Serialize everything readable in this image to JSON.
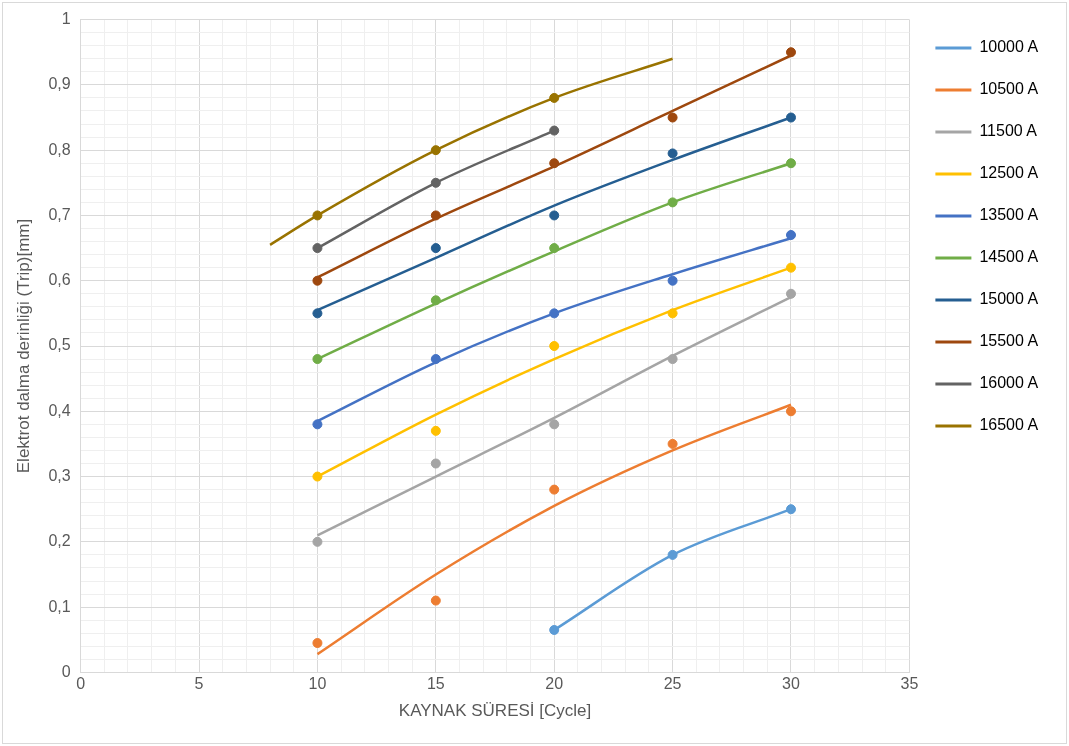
{
  "chart_data": {
    "type": "scatter",
    "xlabel": "KAYNAK SÜRESİ [Cycle]",
    "ylabel": "Elektrot dalma derinliği (Trip)[mm]",
    "xlim": [
      0,
      35
    ],
    "ylim": [
      0,
      1
    ],
    "xticks": [
      0,
      {
        "value": 1,
        "label": null
      },
      {
        "value": 2,
        "label": null
      },
      {
        "value": 3,
        "label": null
      },
      {
        "value": 4,
        "label": null
      },
      5,
      {
        "value": 6,
        "label": null
      },
      {
        "value": 7,
        "label": null
      },
      {
        "value": 8,
        "label": null
      },
      {
        "value": 9,
        "label": null
      },
      10,
      {
        "value": 11,
        "label": null
      },
      {
        "value": 12,
        "label": null
      },
      {
        "value": 13,
        "label": null
      },
      {
        "value": 14,
        "label": null
      },
      15,
      {
        "value": 16,
        "label": null
      },
      {
        "value": 17,
        "label": null
      },
      {
        "value": 18,
        "label": null
      },
      {
        "value": 19,
        "label": null
      },
      20,
      {
        "value": 21,
        "label": null
      },
      {
        "value": 22,
        "label": null
      },
      {
        "value": 23,
        "label": null
      },
      {
        "value": 24,
        "label": null
      },
      25,
      {
        "value": 26,
        "label": null
      },
      {
        "value": 27,
        "label": null
      },
      {
        "value": 28,
        "label": null
      },
      {
        "value": 29,
        "label": null
      },
      30,
      {
        "value": 31,
        "label": null
      },
      {
        "value": 32,
        "label": null
      },
      {
        "value": 33,
        "label": null
      },
      {
        "value": 34,
        "label": null
      },
      35
    ],
    "yticks": [
      0,
      {
        "value": 0.02,
        "label": null
      },
      {
        "value": 0.04,
        "label": null
      },
      {
        "value": 0.06,
        "label": null
      },
      {
        "value": 0.08,
        "label": null
      },
      {
        "value": 0.1,
        "label": "0,1"
      },
      {
        "value": 0.12,
        "label": null
      },
      {
        "value": 0.14,
        "label": null
      },
      {
        "value": 0.16,
        "label": null
      },
      {
        "value": 0.18,
        "label": null
      },
      {
        "value": 0.2,
        "label": "0,2"
      },
      {
        "value": 0.22,
        "label": null
      },
      {
        "value": 0.24,
        "label": null
      },
      {
        "value": 0.26,
        "label": null
      },
      {
        "value": 0.28,
        "label": null
      },
      {
        "value": 0.3,
        "label": "0,3"
      },
      {
        "value": 0.32,
        "label": null
      },
      {
        "value": 0.34,
        "label": null
      },
      {
        "value": 0.36,
        "label": null
      },
      {
        "value": 0.38,
        "label": null
      },
      {
        "value": 0.4,
        "label": "0,4"
      },
      {
        "value": 0.42,
        "label": null
      },
      {
        "value": 0.44,
        "label": null
      },
      {
        "value": 0.46,
        "label": null
      },
      {
        "value": 0.48,
        "label": null
      },
      {
        "value": 0.5,
        "label": "0,5"
      },
      {
        "value": 0.52,
        "label": null
      },
      {
        "value": 0.54,
        "label": null
      },
      {
        "value": 0.56,
        "label": null
      },
      {
        "value": 0.58,
        "label": null
      },
      {
        "value": 0.6,
        "label": "0,6"
      },
      {
        "value": 0.62,
        "label": null
      },
      {
        "value": 0.64,
        "label": null
      },
      {
        "value": 0.66,
        "label": null
      },
      {
        "value": 0.68,
        "label": null
      },
      {
        "value": 0.7,
        "label": "0,7"
      },
      {
        "value": 0.72,
        "label": null
      },
      {
        "value": 0.74,
        "label": null
      },
      {
        "value": 0.76,
        "label": null
      },
      {
        "value": 0.78,
        "label": null
      },
      {
        "value": 0.8,
        "label": "0,8"
      },
      {
        "value": 0.82,
        "label": null
      },
      {
        "value": 0.84,
        "label": null
      },
      {
        "value": 0.86,
        "label": null
      },
      {
        "value": 0.88,
        "label": null
      },
      {
        "value": 0.9,
        "label": "0,9"
      },
      {
        "value": 0.92,
        "label": null
      },
      {
        "value": 0.94,
        "label": null
      },
      {
        "value": 0.96,
        "label": null
      },
      {
        "value": 0.98,
        "label": null
      },
      1
    ],
    "grid": true,
    "legend": "right",
    "marker": "circle",
    "series": [
      {
        "name": "10000 A",
        "color": "#5b9bd5",
        "x": [
          20,
          25,
          30
        ],
        "values": [
          0.065,
          0.18,
          0.25
        ]
      },
      {
        "name": "10500 A",
        "color": "#ed7d31",
        "x": [
          10,
          15,
          20,
          25,
          30
        ],
        "values": [
          0.045,
          0.11,
          0.28,
          0.35,
          0.4
        ]
      },
      {
        "name": "11500 A",
        "color": "#a5a5a5",
        "x": [
          10,
          15,
          20,
          25,
          30
        ],
        "values": [
          0.2,
          0.32,
          0.38,
          0.48,
          0.58
        ]
      },
      {
        "name": "12500 A",
        "color": "#ffc000",
        "x": [
          10,
          15,
          20,
          25,
          30
        ],
        "values": [
          0.3,
          0.37,
          0.5,
          0.55,
          0.62
        ]
      },
      {
        "name": "13500 A",
        "color": "#4472c4",
        "x": [
          10,
          15,
          20,
          25,
          30
        ],
        "values": [
          0.38,
          0.48,
          0.55,
          0.6,
          0.67
        ]
      },
      {
        "name": "14500 A",
        "color": "#70ad47",
        "x": [
          10,
          15,
          20,
          25,
          30
        ],
        "values": [
          0.48,
          0.57,
          0.65,
          0.72,
          0.78
        ]
      },
      {
        "name": "15000 A",
        "color": "#255e91",
        "x": [
          10,
          15,
          20,
          25,
          30
        ],
        "values": [
          0.55,
          0.65,
          0.7,
          0.795,
          0.85
        ]
      },
      {
        "name": "15500 A",
        "color": "#9e480e",
        "x": [
          10,
          15,
          20,
          25,
          30
        ],
        "values": [
          0.6,
          0.7,
          0.78,
          0.85,
          0.95
        ]
      },
      {
        "name": "16000 A",
        "color": "#636363",
        "x": [
          10,
          15,
          20
        ],
        "values": [
          0.65,
          0.75,
          0.83
        ]
      },
      {
        "name": "16500 A",
        "color": "#997300",
        "x": [
          10,
          15,
          20
        ],
        "values": [
          0.7,
          0.8,
          0.88
        ]
      },
      {
        "type": "line",
        "marker": "none",
        "color": "#5b9bd5",
        "x": [
          20,
          25,
          30
        ],
        "values": [
          0.065,
          0.18,
          0.25
        ]
      },
      {
        "type": "line",
        "marker": "none",
        "color": "#ed7d31",
        "x": [
          10,
          15,
          20,
          25,
          30
        ],
        "values": [
          0.028,
          0.15,
          0.255,
          0.34,
          0.41
        ]
      },
      {
        "type": "line",
        "marker": "none",
        "color": "#a5a5a5",
        "x": [
          10,
          15,
          20,
          25,
          30
        ],
        "values": [
          0.21,
          0.3,
          0.39,
          0.485,
          0.575
        ]
      },
      {
        "type": "line",
        "marker": "none",
        "color": "#ffc000",
        "x": [
          10,
          15,
          20,
          25,
          30
        ],
        "values": [
          0.3,
          0.395,
          0.48,
          0.555,
          0.62
        ]
      },
      {
        "type": "line",
        "marker": "none",
        "color": "#4472c4",
        "x": [
          10,
          15,
          20,
          25,
          30
        ],
        "values": [
          0.385,
          0.475,
          0.55,
          0.61,
          0.665
        ]
      },
      {
        "type": "line",
        "marker": "none",
        "color": "#70ad47",
        "x": [
          10,
          15,
          20,
          25,
          30
        ],
        "values": [
          0.48,
          0.565,
          0.645,
          0.72,
          0.78
        ]
      },
      {
        "type": "line",
        "marker": "none",
        "color": "#255e91",
        "x": [
          10,
          15,
          20,
          25,
          30
        ],
        "values": [
          0.555,
          0.635,
          0.715,
          0.785,
          0.85
        ]
      },
      {
        "type": "line",
        "marker": "none",
        "color": "#9e480e",
        "x": [
          10,
          15,
          20,
          25,
          30
        ],
        "values": [
          0.605,
          0.695,
          0.775,
          0.86,
          0.945
        ]
      },
      {
        "type": "line",
        "marker": "none",
        "color": "#636363",
        "x": [
          10,
          15,
          20
        ],
        "values": [
          0.65,
          0.75,
          0.83
        ]
      },
      {
        "type": "line",
        "marker": "none",
        "color": "#997300",
        "x": [
          8,
          10,
          15,
          20,
          25
        ],
        "values": [
          0.655,
          0.7,
          0.8,
          0.88,
          0.94
        ]
      }
    ]
  }
}
